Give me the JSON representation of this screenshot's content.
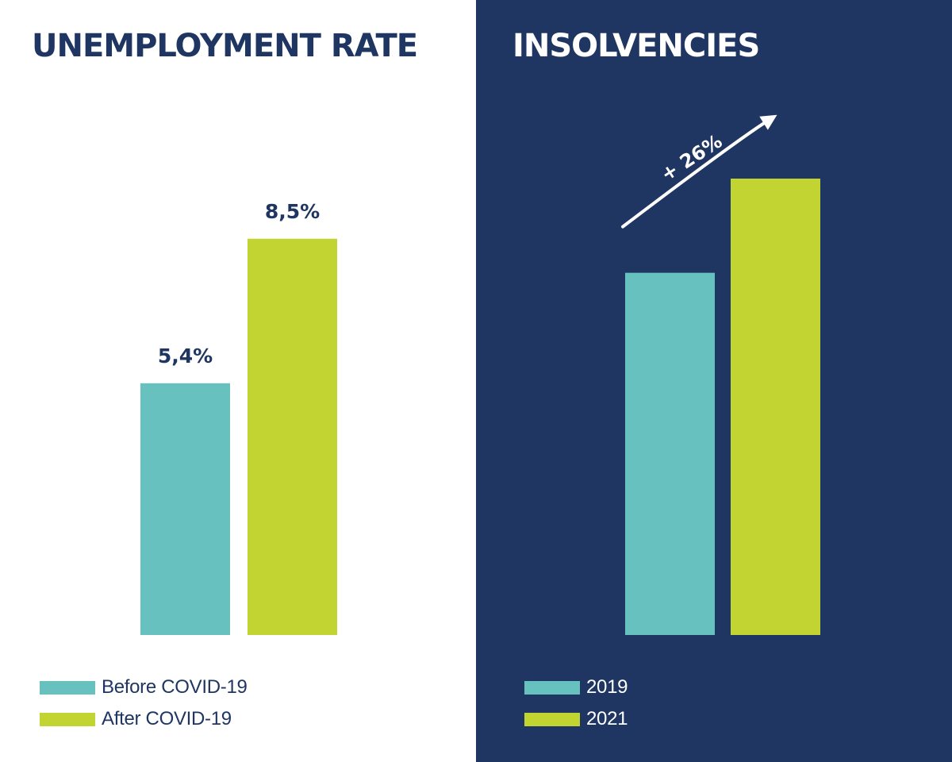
{
  "colors": {
    "navy": "#1f3662",
    "white": "#ffffff",
    "teal": "#67c1be",
    "lime": "#c1d432"
  },
  "chart_data": [
    {
      "type": "bar",
      "title": "UNEMPLOYMENT RATE",
      "categories": [
        "Before COVID-19",
        "After COVID-19"
      ],
      "values": [
        5.4,
        8.5
      ],
      "data_labels": [
        "5,4%",
        "8,5%"
      ],
      "colors": [
        "#67c1be",
        "#c1d432"
      ],
      "ylim": [
        0,
        13.28
      ],
      "legend": {
        "placement": "bottom-left",
        "entries": [
          "Before COVID-19",
          "After COVID-19"
        ]
      },
      "grid": false,
      "axes_visible": false
    },
    {
      "type": "bar",
      "title": "INSOLVENCIES",
      "categories": [
        "2019",
        "2021"
      ],
      "values": [
        100,
        126
      ],
      "colors": [
        "#67c1be",
        "#c1d432"
      ],
      "ylim": [
        0,
        126
      ],
      "annotation": "+ 26%",
      "legend": {
        "placement": "bottom-left",
        "entries": [
          "2019",
          "2021"
        ]
      },
      "grid": false,
      "axes_visible": false
    }
  ]
}
